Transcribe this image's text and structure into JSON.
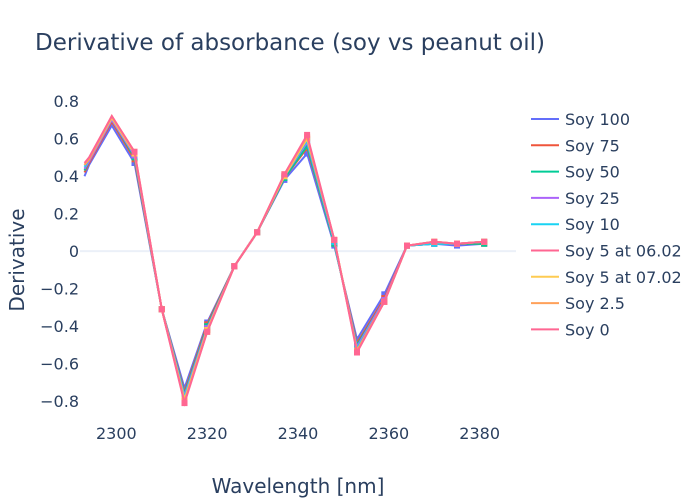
{
  "chart_data": {
    "type": "line",
    "title": "Derivative of absorbance (soy vs peanut oil)",
    "xlabel": "Wavelength [nm]",
    "ylabel": "Derivative",
    "xlim": [
      2292,
      2388
    ],
    "ylim": [
      -0.9,
      0.87
    ],
    "xticks": [
      2300,
      2320,
      2340,
      2360,
      2380
    ],
    "xtick_labels": [
      "2300",
      "2320",
      "2340",
      "2360",
      "2380"
    ],
    "yticks": [
      -0.8,
      -0.6,
      -0.4,
      -0.2,
      0,
      0.2,
      0.4,
      0.6,
      0.8
    ],
    "ytick_labels": [
      "−0.8",
      "−0.6",
      "−0.4",
      "−0.2",
      "0",
      "0.2",
      "0.4",
      "0.6",
      "0.8"
    ],
    "grid": "zero-line only",
    "legend_position": "right",
    "x": [
      2293,
      2294,
      2299,
      2304,
      2310,
      2315,
      2320,
      2326,
      2331,
      2337,
      2342,
      2348,
      2353,
      2359,
      2364,
      2370,
      2375,
      2381
    ],
    "marker_count": 15,
    "series": [
      {
        "name": "Soy 100",
        "color": "#636efa",
        "values": [
          0.4,
          0.46,
          0.67,
          0.47,
          -0.31,
          -0.73,
          -0.38,
          -0.08,
          0.1,
          0.38,
          0.52,
          0.03,
          -0.47,
          -0.23,
          0.03,
          0.04,
          0.03,
          0.04
        ]
      },
      {
        "name": "Soy 75",
        "color": "#EF553B",
        "values": [
          0.42,
          0.47,
          0.69,
          0.49,
          -0.31,
          -0.75,
          -0.39,
          -0.08,
          0.1,
          0.39,
          0.55,
          0.04,
          -0.49,
          -0.25,
          0.03,
          0.04,
          0.04,
          0.04
        ]
      },
      {
        "name": "Soy 50",
        "color": "#00cc96",
        "values": [
          0.43,
          0.48,
          0.7,
          0.5,
          -0.31,
          -0.76,
          -0.4,
          -0.08,
          0.1,
          0.39,
          0.56,
          0.04,
          -0.5,
          -0.26,
          0.03,
          0.04,
          0.04,
          0.04
        ]
      },
      {
        "name": "Soy 25",
        "color": "#ab63fa",
        "values": [
          0.44,
          0.48,
          0.7,
          0.51,
          -0.31,
          -0.77,
          -0.41,
          -0.08,
          0.1,
          0.4,
          0.58,
          0.05,
          -0.51,
          -0.26,
          0.03,
          0.04,
          0.04,
          0.05
        ]
      },
      {
        "name": "Soy 10",
        "color": "#19d3f3",
        "values": [
          0.45,
          0.49,
          0.71,
          0.52,
          -0.31,
          -0.78,
          -0.42,
          -0.08,
          0.1,
          0.4,
          0.59,
          0.05,
          -0.52,
          -0.27,
          0.03,
          0.04,
          0.04,
          0.05
        ]
      },
      {
        "name": "Soy 5 at 06.02",
        "color": "#FF6692",
        "values": [
          0.46,
          0.49,
          0.72,
          0.52,
          -0.31,
          -0.8,
          -0.42,
          -0.08,
          0.1,
          0.4,
          0.6,
          0.06,
          -0.53,
          -0.27,
          0.03,
          0.05,
          0.04,
          0.05
        ]
      },
      {
        "name": "Soy 5 at 07.02",
        "color": "#FECB52",
        "values": [
          0.46,
          0.49,
          0.71,
          0.52,
          -0.31,
          -0.79,
          -0.42,
          -0.08,
          0.1,
          0.4,
          0.6,
          0.06,
          -0.53,
          -0.27,
          0.03,
          0.05,
          0.04,
          0.05
        ]
      },
      {
        "name": "Soy 2.5",
        "color": "#FFA15A",
        "values": [
          0.46,
          0.49,
          0.72,
          0.53,
          -0.31,
          -0.8,
          -0.43,
          -0.08,
          0.1,
          0.41,
          0.61,
          0.06,
          -0.53,
          -0.27,
          0.03,
          0.05,
          0.04,
          0.05
        ]
      },
      {
        "name": "Soy 0",
        "color": "#FF6692",
        "values": [
          0.47,
          0.5,
          0.72,
          0.53,
          -0.31,
          -0.81,
          -0.43,
          -0.08,
          0.1,
          0.41,
          0.62,
          0.06,
          -0.54,
          -0.27,
          0.03,
          0.05,
          0.04,
          0.05
        ]
      }
    ]
  }
}
